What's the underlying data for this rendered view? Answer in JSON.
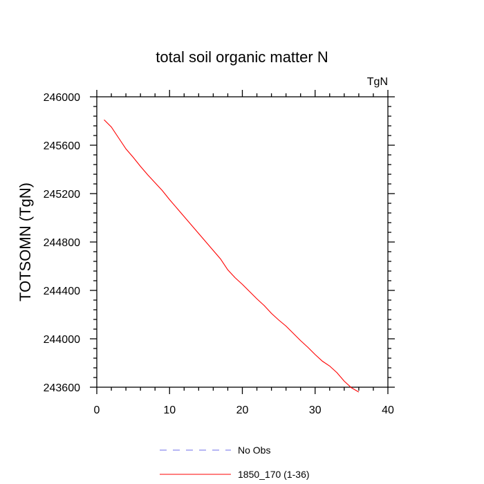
{
  "chart_data": {
    "type": "line",
    "title": "total soil organic matter N",
    "units_label": "TgN",
    "ylabel": "TOTSOMN  (TgN)",
    "xlabel": "",
    "xlim": [
      0,
      40
    ],
    "ylim": [
      243600,
      246000
    ],
    "x_ticks": [
      0,
      10,
      20,
      30,
      40
    ],
    "y_ticks": [
      243600,
      244000,
      244400,
      244800,
      245200,
      245600,
      246000
    ],
    "x_tick_labels": [
      "0",
      "10",
      "20",
      "30",
      "40"
    ],
    "y_tick_labels": [
      "243600",
      "244000",
      "244400",
      "244800",
      "245200",
      "245600",
      "246000"
    ],
    "grid": false,
    "legend_position": "bottom",
    "series": [
      {
        "name": "No Obs",
        "color": "#6e6ee8",
        "dash": "dashed",
        "x": [],
        "y": []
      },
      {
        "name": "1850_170 (1-36)",
        "color": "#ff0000",
        "dash": "solid",
        "x": [
          1,
          2,
          3,
          4,
          5,
          6,
          7,
          8,
          9,
          10,
          11,
          12,
          13,
          14,
          15,
          16,
          17,
          18,
          19,
          20,
          21,
          22,
          23,
          24,
          25,
          26,
          27,
          28,
          29,
          30,
          31,
          32,
          33,
          34,
          35,
          36
        ],
        "y": [
          245810,
          245750,
          245660,
          245570,
          245500,
          245425,
          245355,
          245290,
          245225,
          245150,
          245080,
          245010,
          244940,
          244870,
          244800,
          244730,
          244660,
          244570,
          244505,
          244450,
          244390,
          244330,
          244275,
          244210,
          244155,
          244105,
          244045,
          243985,
          243930,
          243870,
          243815,
          243775,
          243720,
          243650,
          243595,
          243560
        ]
      }
    ]
  }
}
